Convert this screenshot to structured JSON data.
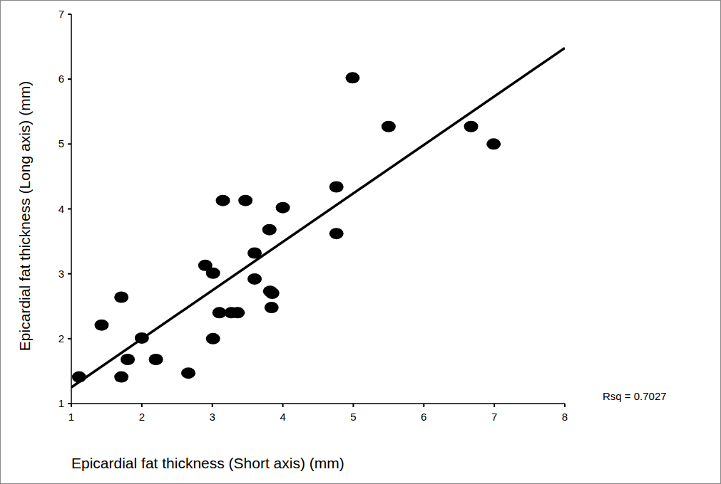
{
  "chart_data": {
    "type": "scatter",
    "x_label": "Epicardial fat thickness (Short axis) (mm)",
    "y_label": "Epicardial fat thickness (Long axis) (mm)",
    "annotation": "Rsq = 0.7027",
    "x": [
      1.11,
      1.43,
      1.71,
      1.71,
      1.8,
      2.0,
      2.2,
      2.66,
      2.9,
      3.01,
      3.01,
      3.1,
      3.15,
      3.27,
      3.36,
      3.47,
      3.6,
      3.6,
      3.81,
      3.82,
      3.85,
      3.84,
      4.0,
      4.76,
      4.76,
      4.99,
      5.5,
      6.67,
      6.99
    ],
    "values": [
      1.41,
      2.21,
      2.64,
      1.41,
      1.68,
      2.01,
      1.68,
      1.47,
      3.13,
      3.01,
      2.0,
      2.4,
      4.13,
      2.4,
      2.4,
      4.13,
      3.32,
      2.92,
      3.68,
      2.73,
      2.7,
      2.48,
      4.02,
      4.34,
      3.62,
      6.02,
      5.27,
      5.27,
      5.0
    ],
    "color": "#000000",
    "marker": "ellipse",
    "fit_line": {
      "x": [
        1,
        8
      ],
      "values": [
        1.25,
        6.48
      ]
    },
    "xlim": [
      1,
      8
    ],
    "xticks": [
      1,
      2,
      3,
      4,
      5,
      6,
      7,
      8
    ],
    "ylim": [
      1,
      7
    ],
    "yticks": [
      1,
      2,
      3,
      4,
      5,
      6,
      7
    ],
    "grid": false
  }
}
